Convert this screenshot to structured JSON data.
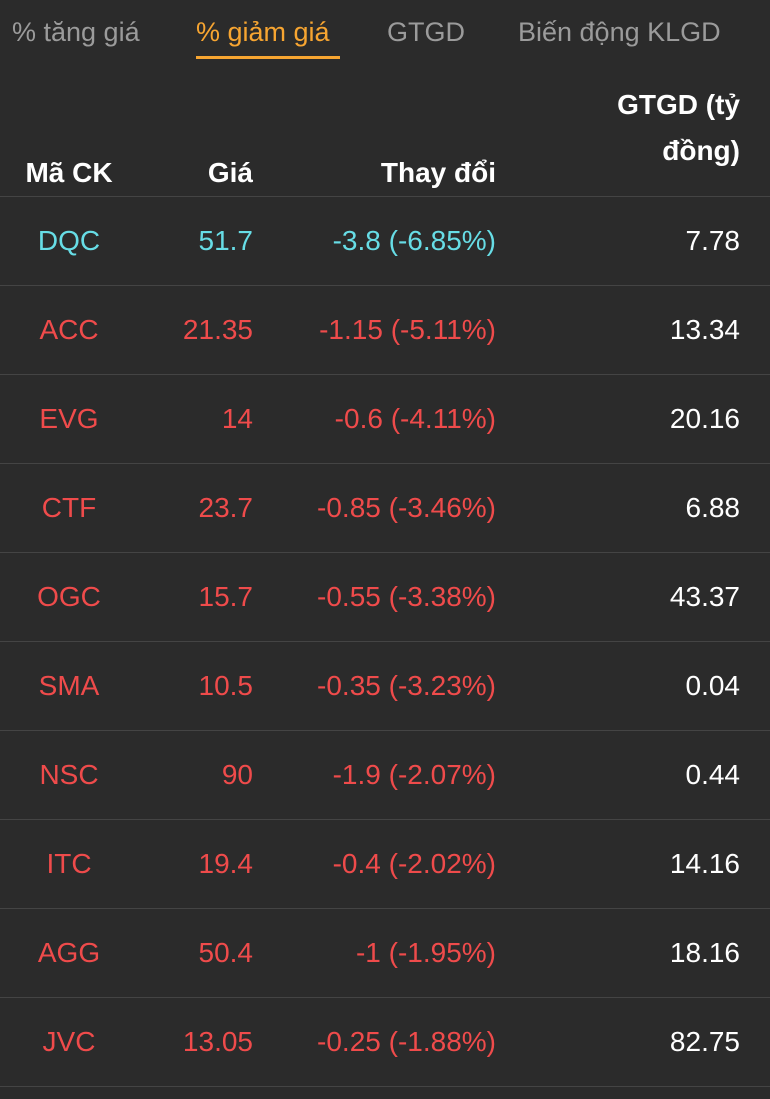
{
  "tabs": [
    {
      "label": "% tăng giá",
      "active": false
    },
    {
      "label": "% giảm giá",
      "active": true
    },
    {
      "label": "GTGD",
      "active": false
    },
    {
      "label": "Biến động KLGD",
      "active": false
    }
  ],
  "columns": {
    "code": "Mã CK",
    "price": "Giá",
    "change": "Thay đổi",
    "value_line1": "GTGD (tỷ",
    "value_line2": "đồng)"
  },
  "colors": {
    "accent": "#f7a531",
    "down": "#ef4b4b",
    "floor": "#67dde6",
    "background": "#2b2b2b"
  },
  "rows": [
    {
      "code": "DQC",
      "price": "51.7",
      "change": "-3.8 (-6.85%)",
      "value": "7.78",
      "status": "floor"
    },
    {
      "code": "ACC",
      "price": "21.35",
      "change": "-1.15 (-5.11%)",
      "value": "13.34",
      "status": "down"
    },
    {
      "code": "EVG",
      "price": "14",
      "change": "-0.6 (-4.11%)",
      "value": "20.16",
      "status": "down"
    },
    {
      "code": "CTF",
      "price": "23.7",
      "change": "-0.85 (-3.46%)",
      "value": "6.88",
      "status": "down"
    },
    {
      "code": "OGC",
      "price": "15.7",
      "change": "-0.55 (-3.38%)",
      "value": "43.37",
      "status": "down"
    },
    {
      "code": "SMA",
      "price": "10.5",
      "change": "-0.35 (-3.23%)",
      "value": "0.04",
      "status": "down"
    },
    {
      "code": "NSC",
      "price": "90",
      "change": "-1.9 (-2.07%)",
      "value": "0.44",
      "status": "down"
    },
    {
      "code": "ITC",
      "price": "19.4",
      "change": "-0.4 (-2.02%)",
      "value": "14.16",
      "status": "down"
    },
    {
      "code": "AGG",
      "price": "50.4",
      "change": "-1 (-1.95%)",
      "value": "18.16",
      "status": "down"
    },
    {
      "code": "JVC",
      "price": "13.05",
      "change": "-0.25 (-1.88%)",
      "value": "82.75",
      "status": "down"
    }
  ]
}
